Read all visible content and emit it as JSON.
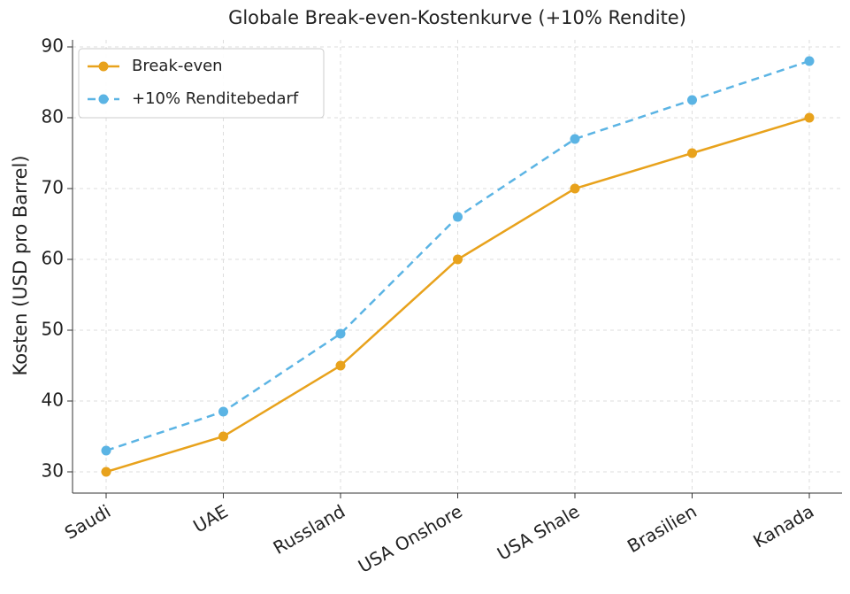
{
  "chart_data": {
    "type": "line",
    "title": "Globale Break-even-Kostenkurve (+10% Rendite)",
    "ylabel": "Kosten (USD pro Barrel)",
    "categories": [
      "Saudi",
      "UAE",
      "Russland",
      "USA Onshore",
      "USA Shale",
      "Brasilien",
      "Kanada"
    ],
    "series": [
      {
        "name": "Break-even",
        "color": "#e8a21c",
        "dash": "solid",
        "values": [
          30,
          35,
          45,
          60,
          70,
          75,
          80
        ]
      },
      {
        "name": "+10% Renditebedarf",
        "color": "#5bb4e4",
        "dash": "dashed",
        "values": [
          33,
          38.5,
          49.5,
          66,
          77,
          82.5,
          88
        ]
      }
    ],
    "ylim": [
      27,
      91
    ],
    "yticks": [
      30,
      40,
      50,
      60,
      70,
      80,
      90
    ],
    "grid": true,
    "legend": "upper left"
  }
}
